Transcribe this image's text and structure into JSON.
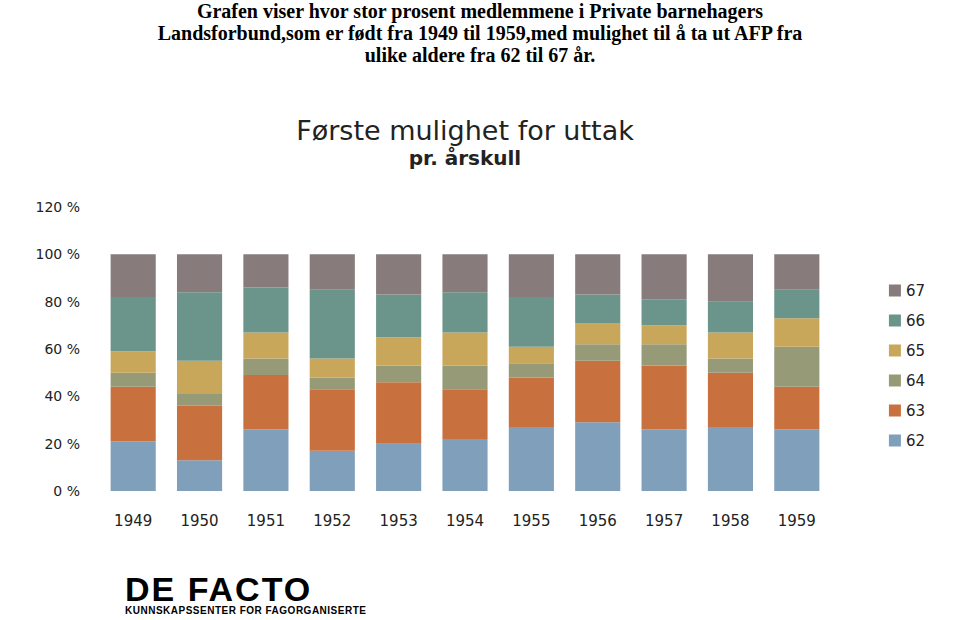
{
  "heading": [
    "Grafen viser hvor stor prosent medlemmene i Private barnehagers",
    "Landsforbund,som er født fra 1949 til 1959,med mulighet til å ta ut AFP fra",
    "ulike aldere fra 62 til 67 år."
  ],
  "footer": {
    "logo": "DE FACTO",
    "subtitle": "KUNNSKAPSSENTER FOR FAGORGANISERTE"
  },
  "chart_data": {
    "type": "bar",
    "title": "Første mulighet for uttak",
    "subtitle": "pr. årskull",
    "stacked": true,
    "legend": "right",
    "grid": false,
    "categories": [
      "1949",
      "1950",
      "1951",
      "1952",
      "1953",
      "1954",
      "1955",
      "1956",
      "1957",
      "1958",
      "1959"
    ],
    "series": [
      {
        "name": "62",
        "color": "#7f9fbb",
        "values": [
          21,
          13,
          26,
          17,
          20,
          22,
          27,
          29,
          26,
          27,
          26
        ]
      },
      {
        "name": "63",
        "color": "#c8703e",
        "values": [
          23,
          23,
          23,
          26,
          26,
          21,
          21,
          26,
          27,
          23,
          18
        ]
      },
      {
        "name": "64",
        "color": "#969a76",
        "values": [
          6,
          5,
          7,
          5,
          7,
          10,
          6,
          7,
          9,
          6,
          17
        ]
      },
      {
        "name": "65",
        "color": "#c9a75a",
        "values": [
          9,
          14,
          11,
          8,
          12,
          14,
          7,
          9,
          8,
          11,
          12
        ]
      },
      {
        "name": "66",
        "color": "#6b948a",
        "values": [
          23,
          29,
          19,
          29,
          18,
          17,
          21,
          12,
          11,
          13,
          12
        ]
      },
      {
        "name": "67",
        "color": "#877b7b",
        "values": [
          18,
          16,
          14,
          15,
          17,
          16,
          18,
          17,
          19,
          20,
          15
        ]
      }
    ],
    "ylim": [
      0,
      120
    ],
    "yticks": [
      {
        "value": 0,
        "label": "0 %"
      },
      {
        "value": 20,
        "label": "20 %"
      },
      {
        "value": 40,
        "label": "40 %"
      },
      {
        "value": 60,
        "label": "60 %"
      },
      {
        "value": 80,
        "label": "80 %"
      },
      {
        "value": 100,
        "label": "100 %"
      },
      {
        "value": 120,
        "label": "120 %"
      }
    ]
  }
}
